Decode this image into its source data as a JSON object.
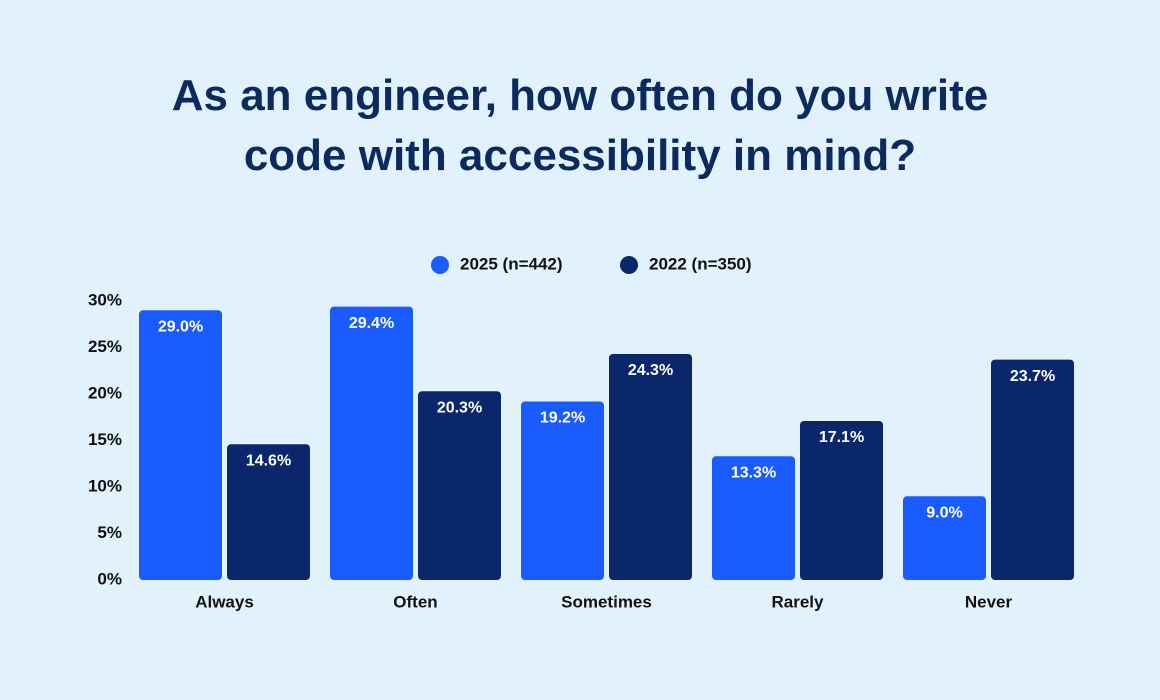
{
  "chart_data": {
    "type": "bar",
    "title": "As an engineer, how often do you write code with accessibility in mind?",
    "categories": [
      "Always",
      "Often",
      "Sometimes",
      "Rarely",
      "Never"
    ],
    "series": [
      {
        "name": "2025 (n=442)",
        "color": "#1a5bff",
        "values": [
          29.0,
          29.4,
          19.2,
          13.3,
          9.0
        ],
        "value_labels": [
          "29.0%",
          "29.4%",
          "19.2%",
          "13.3%",
          "9.0%"
        ]
      },
      {
        "name": "2022 (n=350)",
        "color": "#0a276b",
        "values": [
          14.6,
          20.3,
          24.3,
          17.1,
          23.7
        ],
        "value_labels": [
          "14.6%",
          "20.3%",
          "24.3%",
          "17.1%",
          "23.7%"
        ]
      }
    ],
    "ylim": [
      0,
      30
    ],
    "yticks": [
      {
        "value": 0,
        "label": "0%"
      },
      {
        "value": 5,
        "label": "5%"
      },
      {
        "value": 10,
        "label": "10%"
      },
      {
        "value": 15,
        "label": "15%"
      },
      {
        "value": 20,
        "label": "20%"
      },
      {
        "value": 25,
        "label": "25%"
      },
      {
        "value": 30,
        "label": "30%"
      }
    ],
    "legend": "top"
  }
}
